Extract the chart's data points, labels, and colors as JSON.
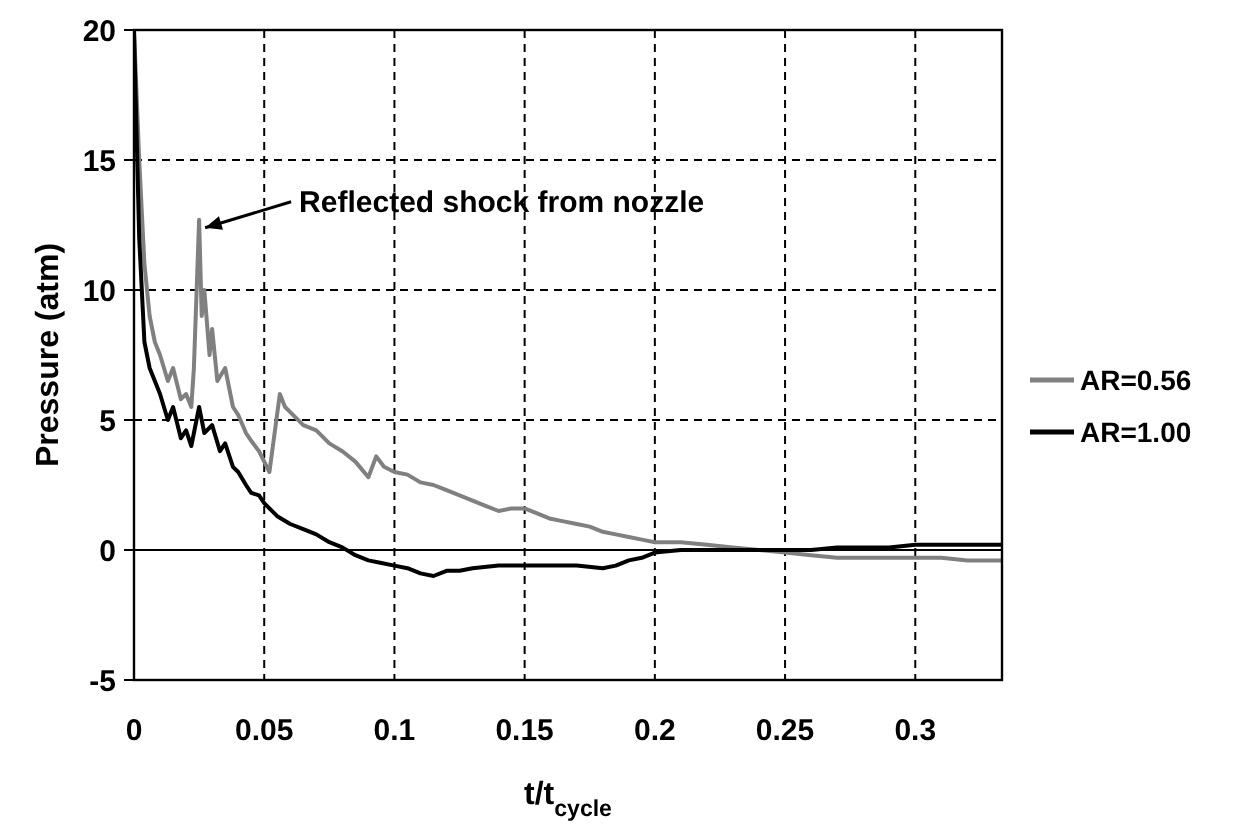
{
  "chart_data": {
    "type": "line",
    "xlabel": "t/t$_{cycle}$",
    "ylabel": "Pressure (atm)",
    "xlim": [
      0,
      0.3333
    ],
    "xticks": [
      0,
      0.05,
      0.1,
      0.15,
      0.2,
      0.25,
      0.3
    ],
    "ylim": [
      -5,
      20
    ],
    "yticks": [
      -5,
      0,
      5,
      10,
      15,
      20
    ],
    "grid": true,
    "legend": "right",
    "line_style": "solid",
    "ref_lines": [
      {
        "axis": "y",
        "value": 0,
        "color": "#000000"
      }
    ],
    "annotations": [
      {
        "text": "Reflected shock from nozzle",
        "x": 0.025,
        "y": 12.7
      }
    ],
    "series": [
      {
        "name": "AR=0.56",
        "color": "#808080",
        "x": [
          0,
          0.002,
          0.004,
          0.006,
          0.008,
          0.01,
          0.013,
          0.015,
          0.018,
          0.02,
          0.022,
          0.023,
          0.025,
          0.026,
          0.027,
          0.029,
          0.03,
          0.032,
          0.035,
          0.038,
          0.04,
          0.043,
          0.045,
          0.048,
          0.05,
          0.052,
          0.054,
          0.056,
          0.058,
          0.06,
          0.065,
          0.07,
          0.075,
          0.08,
          0.085,
          0.09,
          0.093,
          0.096,
          0.1,
          0.105,
          0.11,
          0.115,
          0.12,
          0.125,
          0.13,
          0.135,
          0.14,
          0.145,
          0.15,
          0.155,
          0.16,
          0.165,
          0.17,
          0.175,
          0.18,
          0.185,
          0.19,
          0.195,
          0.2,
          0.21,
          0.22,
          0.23,
          0.24,
          0.25,
          0.26,
          0.27,
          0.28,
          0.29,
          0.3,
          0.31,
          0.32,
          0.3333
        ],
        "values": [
          20,
          15,
          11,
          9,
          8,
          7.5,
          6.5,
          7,
          5.8,
          6,
          5.5,
          7,
          12.7,
          9,
          10,
          7.5,
          8.5,
          6.5,
          7,
          5.5,
          5.2,
          4.5,
          4.2,
          3.8,
          3.4,
          3,
          4.5,
          6,
          5.5,
          5.3,
          4.8,
          4.6,
          4.1,
          3.8,
          3.4,
          2.8,
          3.6,
          3.2,
          3,
          2.9,
          2.6,
          2.5,
          2.3,
          2.1,
          1.9,
          1.7,
          1.5,
          1.6,
          1.6,
          1.4,
          1.2,
          1.1,
          1,
          0.9,
          0.7,
          0.6,
          0.5,
          0.4,
          0.3,
          0.3,
          0.2,
          0.1,
          0,
          -0.1,
          -0.2,
          -0.3,
          -0.3,
          -0.3,
          -0.3,
          -0.3,
          -0.4,
          -0.4
        ]
      },
      {
        "name": "AR=1.00",
        "color": "#000000",
        "x": [
          0,
          0.002,
          0.004,
          0.006,
          0.008,
          0.01,
          0.013,
          0.015,
          0.018,
          0.02,
          0.022,
          0.025,
          0.027,
          0.03,
          0.033,
          0.035,
          0.038,
          0.04,
          0.043,
          0.045,
          0.048,
          0.05,
          0.055,
          0.06,
          0.065,
          0.07,
          0.075,
          0.08,
          0.085,
          0.09,
          0.095,
          0.1,
          0.105,
          0.11,
          0.115,
          0.12,
          0.125,
          0.13,
          0.14,
          0.15,
          0.16,
          0.17,
          0.18,
          0.185,
          0.19,
          0.195,
          0.2,
          0.21,
          0.22,
          0.23,
          0.24,
          0.25,
          0.26,
          0.27,
          0.28,
          0.29,
          0.3,
          0.31,
          0.32,
          0.3333
        ],
        "values": [
          20,
          12,
          8,
          7,
          6.5,
          6,
          5,
          5.5,
          4.3,
          4.6,
          4,
          5.5,
          4.5,
          4.8,
          3.8,
          4.1,
          3.2,
          3,
          2.5,
          2.2,
          2.1,
          1.8,
          1.3,
          1,
          0.8,
          0.6,
          0.3,
          0.1,
          -0.2,
          -0.4,
          -0.5,
          -0.6,
          -0.7,
          -0.9,
          -1,
          -0.8,
          -0.8,
          -0.7,
          -0.6,
          -0.6,
          -0.6,
          -0.6,
          -0.7,
          -0.6,
          -0.4,
          -0.3,
          -0.1,
          0,
          0,
          0,
          0,
          0,
          0,
          0.1,
          0.1,
          0.1,
          0.2,
          0.2,
          0.2,
          0.2
        ]
      }
    ]
  }
}
